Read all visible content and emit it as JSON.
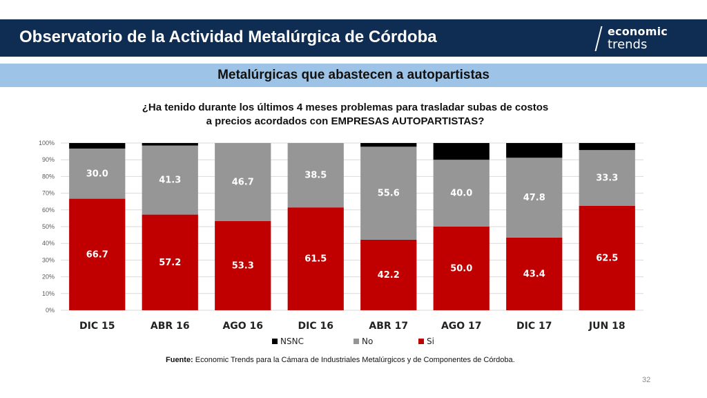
{
  "header": {
    "title": "Observatorio de la Actividad Metalúrgica de Córdoba",
    "logo_line1": "economic",
    "logo_line2": "trends"
  },
  "subtitle": "Metalúrgicas que abastecen a autopartistas",
  "question": {
    "line1": "¿Ha tenido durante los últimos 4 meses problemas para trasladar subas de costos",
    "line2": "a precios acordados con EMPRESAS AUTOPARTISTAS?"
  },
  "footer": {
    "label": "Fuente:",
    "text": " Economic Trends para la Cámara de Industriales Metalúrgicos y de Componentes de Córdoba."
  },
  "page_number": "32",
  "colors": {
    "header": "#0f2d52",
    "subbar": "#9dc3e6",
    "si": "#c00000",
    "no": "#969696",
    "nsnc": "#000000"
  },
  "chart_data": {
    "type": "bar",
    "stacked": true,
    "normalized": true,
    "categories": [
      "DIC 15",
      "ABR 16",
      "AGO 16",
      "DIC 16",
      "ABR 17",
      "AGO 17",
      "DIC 17",
      "JUN 18"
    ],
    "series": [
      {
        "name": "Si",
        "color": "#c00000",
        "values": [
          66.7,
          57.2,
          53.3,
          61.5,
          42.2,
          50.0,
          43.4,
          62.5
        ],
        "labels": [
          "66.7",
          "57.2",
          "53.3",
          "61.5",
          "42.2",
          "50.0",
          "43.4",
          "62.5"
        ]
      },
      {
        "name": "No",
        "color": "#969696",
        "values": [
          30.0,
          41.3,
          46.7,
          38.5,
          55.6,
          40.0,
          47.8,
          33.3
        ],
        "labels": [
          "30.0",
          "41.3",
          "46.7",
          "38.5",
          "55.6",
          "40.0",
          "47.8",
          "33.3"
        ]
      },
      {
        "name": "NSNC",
        "color": "#000000",
        "values": [
          3.3,
          1.5,
          0,
          0,
          2.2,
          10.0,
          8.8,
          4.2
        ],
        "labels": []
      }
    ],
    "yticks": [
      "0%",
      "10%",
      "20%",
      "30%",
      "40%",
      "50%",
      "60%",
      "70%",
      "80%",
      "90%",
      "100%"
    ],
    "ylim": [
      0,
      100
    ],
    "grid": true,
    "legend": {
      "position": "bottom",
      "order": [
        "NSNC",
        "No",
        "Si"
      ]
    }
  }
}
